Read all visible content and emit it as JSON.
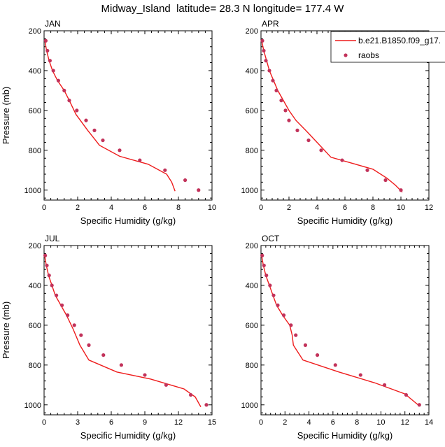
{
  "title": "Midway_Island  latitude= 28.3 N longitude= 177.4 W",
  "legend": {
    "model_label": "b.e21.B1850.f09_g17.",
    "obs_label": "raobs"
  },
  "colors": {
    "model": "#ee1c1c",
    "obs": "#c2325a",
    "axis": "#000000"
  },
  "chart_data": [
    {
      "type": "line",
      "panel": "JAN",
      "xlabel": "Specific Humidity (g/kg)",
      "ylabel": "Pressure (mb)",
      "xlim": [
        0,
        10
      ],
      "ylim": [
        200,
        1050
      ],
      "y_inverted": true,
      "xticks": [
        0,
        2,
        4,
        6,
        8,
        10
      ],
      "xtick_labels": [
        "0",
        "2",
        "4",
        "6",
        "8",
        "10"
      ],
      "yticks": [
        200,
        400,
        600,
        800,
        1000
      ],
      "ytick_labels": [
        "200",
        "400",
        "600",
        "800",
        "1000"
      ],
      "series": [
        {
          "name": "b.e21.B1850.f09_g17.",
          "kind": "line",
          "x": [
            0.05,
            0.15,
            0.3,
            0.5,
            0.8,
            1.2,
            1.5,
            1.9,
            2.6,
            3.3,
            4.5,
            6.2,
            7.3,
            7.6,
            7.8
          ],
          "y": [
            250,
            300,
            350,
            400,
            450,
            500,
            550,
            620,
            700,
            775,
            830,
            870,
            920,
            960,
            1005
          ]
        },
        {
          "name": "raobs",
          "kind": "scatter",
          "x": [
            0.1,
            0.2,
            0.35,
            0.55,
            0.85,
            1.2,
            1.5,
            1.95,
            2.5,
            3.0,
            3.5,
            4.5,
            5.7,
            7.2,
            8.4,
            9.2
          ],
          "y": [
            250,
            300,
            350,
            400,
            450,
            500,
            550,
            600,
            650,
            700,
            750,
            800,
            850,
            900,
            950,
            1000
          ]
        }
      ]
    },
    {
      "type": "line",
      "panel": "APR",
      "xlabel": "Specific Humidity (g/kg)",
      "ylabel": "",
      "xlim": [
        0,
        12
      ],
      "ylim": [
        200,
        1050
      ],
      "y_inverted": true,
      "xticks": [
        0,
        2,
        4,
        6,
        8,
        10,
        12
      ],
      "xtick_labels": [
        "0",
        "2",
        "4",
        "6",
        "8",
        "10",
        "12"
      ],
      "yticks": [
        200,
        400,
        600,
        800,
        1000
      ],
      "ytick_labels": [
        "200",
        "400",
        "600",
        "800",
        "1000"
      ],
      "series": [
        {
          "name": "b.e21.B1850.f09_g17.",
          "kind": "line",
          "x": [
            0.05,
            0.2,
            0.4,
            0.6,
            0.9,
            1.2,
            1.6,
            2.0,
            2.5,
            3.2,
            4.0,
            5.0,
            6.5,
            8.0,
            9.0,
            9.6,
            10.1
          ],
          "y": [
            250,
            300,
            350,
            400,
            450,
            500,
            550,
            600,
            650,
            700,
            760,
            835,
            865,
            895,
            940,
            975,
            1010
          ]
        },
        {
          "name": "raobs",
          "kind": "scatter",
          "x": [
            0.1,
            0.2,
            0.35,
            0.6,
            0.85,
            1.1,
            1.45,
            1.75,
            2.0,
            2.6,
            3.4,
            4.3,
            5.8,
            7.6,
            8.9,
            10.0
          ],
          "y": [
            250,
            300,
            350,
            400,
            450,
            500,
            550,
            600,
            650,
            700,
            750,
            800,
            850,
            900,
            950,
            1000
          ]
        }
      ]
    },
    {
      "type": "line",
      "panel": "JUL",
      "xlabel": "Specific Humidity (g/kg)",
      "ylabel": "Pressure (mb)",
      "xlim": [
        0,
        15
      ],
      "ylim": [
        200,
        1050
      ],
      "y_inverted": true,
      "xticks": [
        0,
        3,
        6,
        9,
        12,
        15
      ],
      "xtick_labels": [
        "0",
        "3",
        "6",
        "9",
        "12",
        "15"
      ],
      "yticks": [
        200,
        400,
        600,
        800,
        1000
      ],
      "ytick_labels": [
        "200",
        "400",
        "600",
        "800",
        "1000"
      ],
      "series": [
        {
          "name": "b.e21.B1850.f09_g17.",
          "kind": "line",
          "x": [
            0.05,
            0.2,
            0.4,
            0.7,
            1.0,
            1.5,
            2.0,
            2.6,
            3.2,
            4.0,
            6.5,
            9.5,
            12.5,
            13.5,
            14.0
          ],
          "y": [
            250,
            300,
            350,
            400,
            450,
            500,
            550,
            620,
            700,
            775,
            835,
            870,
            920,
            960,
            1010
          ]
        },
        {
          "name": "raobs",
          "kind": "scatter",
          "x": [
            0.1,
            0.25,
            0.45,
            0.7,
            1.1,
            1.6,
            2.1,
            2.7,
            3.3,
            4.0,
            5.3,
            6.9,
            9.0,
            10.9,
            13.1,
            14.5
          ],
          "y": [
            250,
            300,
            350,
            400,
            450,
            500,
            550,
            600,
            650,
            700,
            750,
            800,
            850,
            900,
            950,
            1000
          ]
        }
      ]
    },
    {
      "type": "line",
      "panel": "OCT",
      "xlabel": "Specific Humidity (g/kg)",
      "ylabel": "",
      "xlim": [
        0,
        14
      ],
      "ylim": [
        200,
        1050
      ],
      "y_inverted": true,
      "xticks": [
        0,
        2,
        4,
        6,
        8,
        10,
        12,
        14
      ],
      "xtick_labels": [
        "0",
        "2",
        "4",
        "6",
        "8",
        "10",
        "12",
        "14"
      ],
      "yticks": [
        200,
        400,
        600,
        800,
        1000
      ],
      "ytick_labels": [
        "200",
        "400",
        "600",
        "800",
        "1000"
      ],
      "series": [
        {
          "name": "b.e21.B1850.f09_g17.",
          "kind": "line",
          "x": [
            0.05,
            0.2,
            0.4,
            0.7,
            1.0,
            1.3,
            1.8,
            2.4,
            2.6,
            2.7,
            3.5,
            6.5,
            9.5,
            12.0,
            12.8,
            13.2
          ],
          "y": [
            250,
            300,
            350,
            400,
            450,
            500,
            550,
            600,
            650,
            700,
            775,
            835,
            890,
            945,
            985,
            1005
          ]
        },
        {
          "name": "raobs",
          "kind": "scatter",
          "x": [
            0.1,
            0.25,
            0.45,
            0.75,
            1.05,
            1.4,
            1.9,
            2.5,
            2.9,
            3.7,
            4.7,
            6.2,
            8.3,
            10.3,
            12.1,
            13.2
          ],
          "y": [
            250,
            300,
            350,
            400,
            450,
            500,
            550,
            600,
            650,
            700,
            750,
            800,
            850,
            900,
            950,
            1000
          ]
        }
      ]
    }
  ]
}
